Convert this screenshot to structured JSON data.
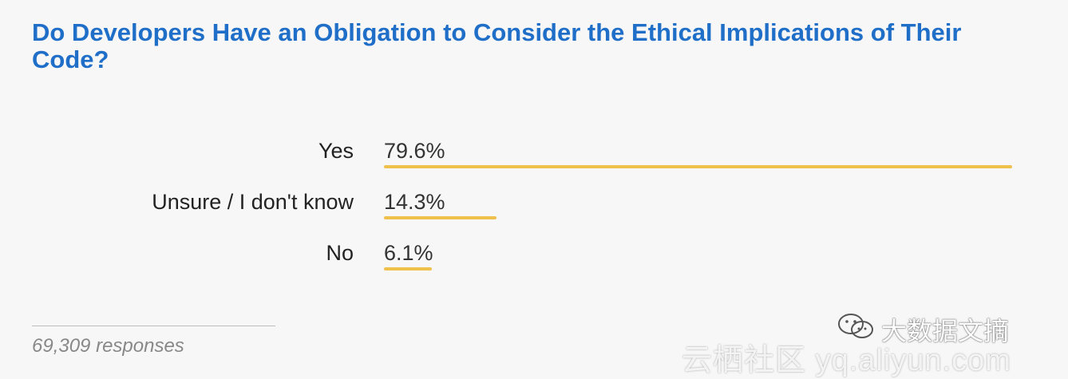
{
  "chart_data": {
    "type": "bar",
    "orientation": "horizontal",
    "title": "Do Developers Have an Obligation to Consider the Ethical Implications of Their Code?",
    "categories": [
      "Yes",
      "Unsure / I don't know",
      "No"
    ],
    "values": [
      79.6,
      14.3,
      6.1
    ],
    "value_labels": [
      "79.6%",
      "14.3%",
      "6.1%"
    ],
    "unit": "%",
    "xlim": [
      0,
      79.6
    ],
    "grid": false,
    "legend": "none"
  },
  "footer": {
    "responses": "69,309 responses"
  },
  "colors": {
    "title": "#1f6ec8",
    "bar": "#f0c04c",
    "text": "#222222",
    "footer": "#888888"
  },
  "watermark": {
    "line1": "大数据文摘",
    "line2": "云栖社区 yq.aliyun.com",
    "icon": "wechat-icon"
  }
}
